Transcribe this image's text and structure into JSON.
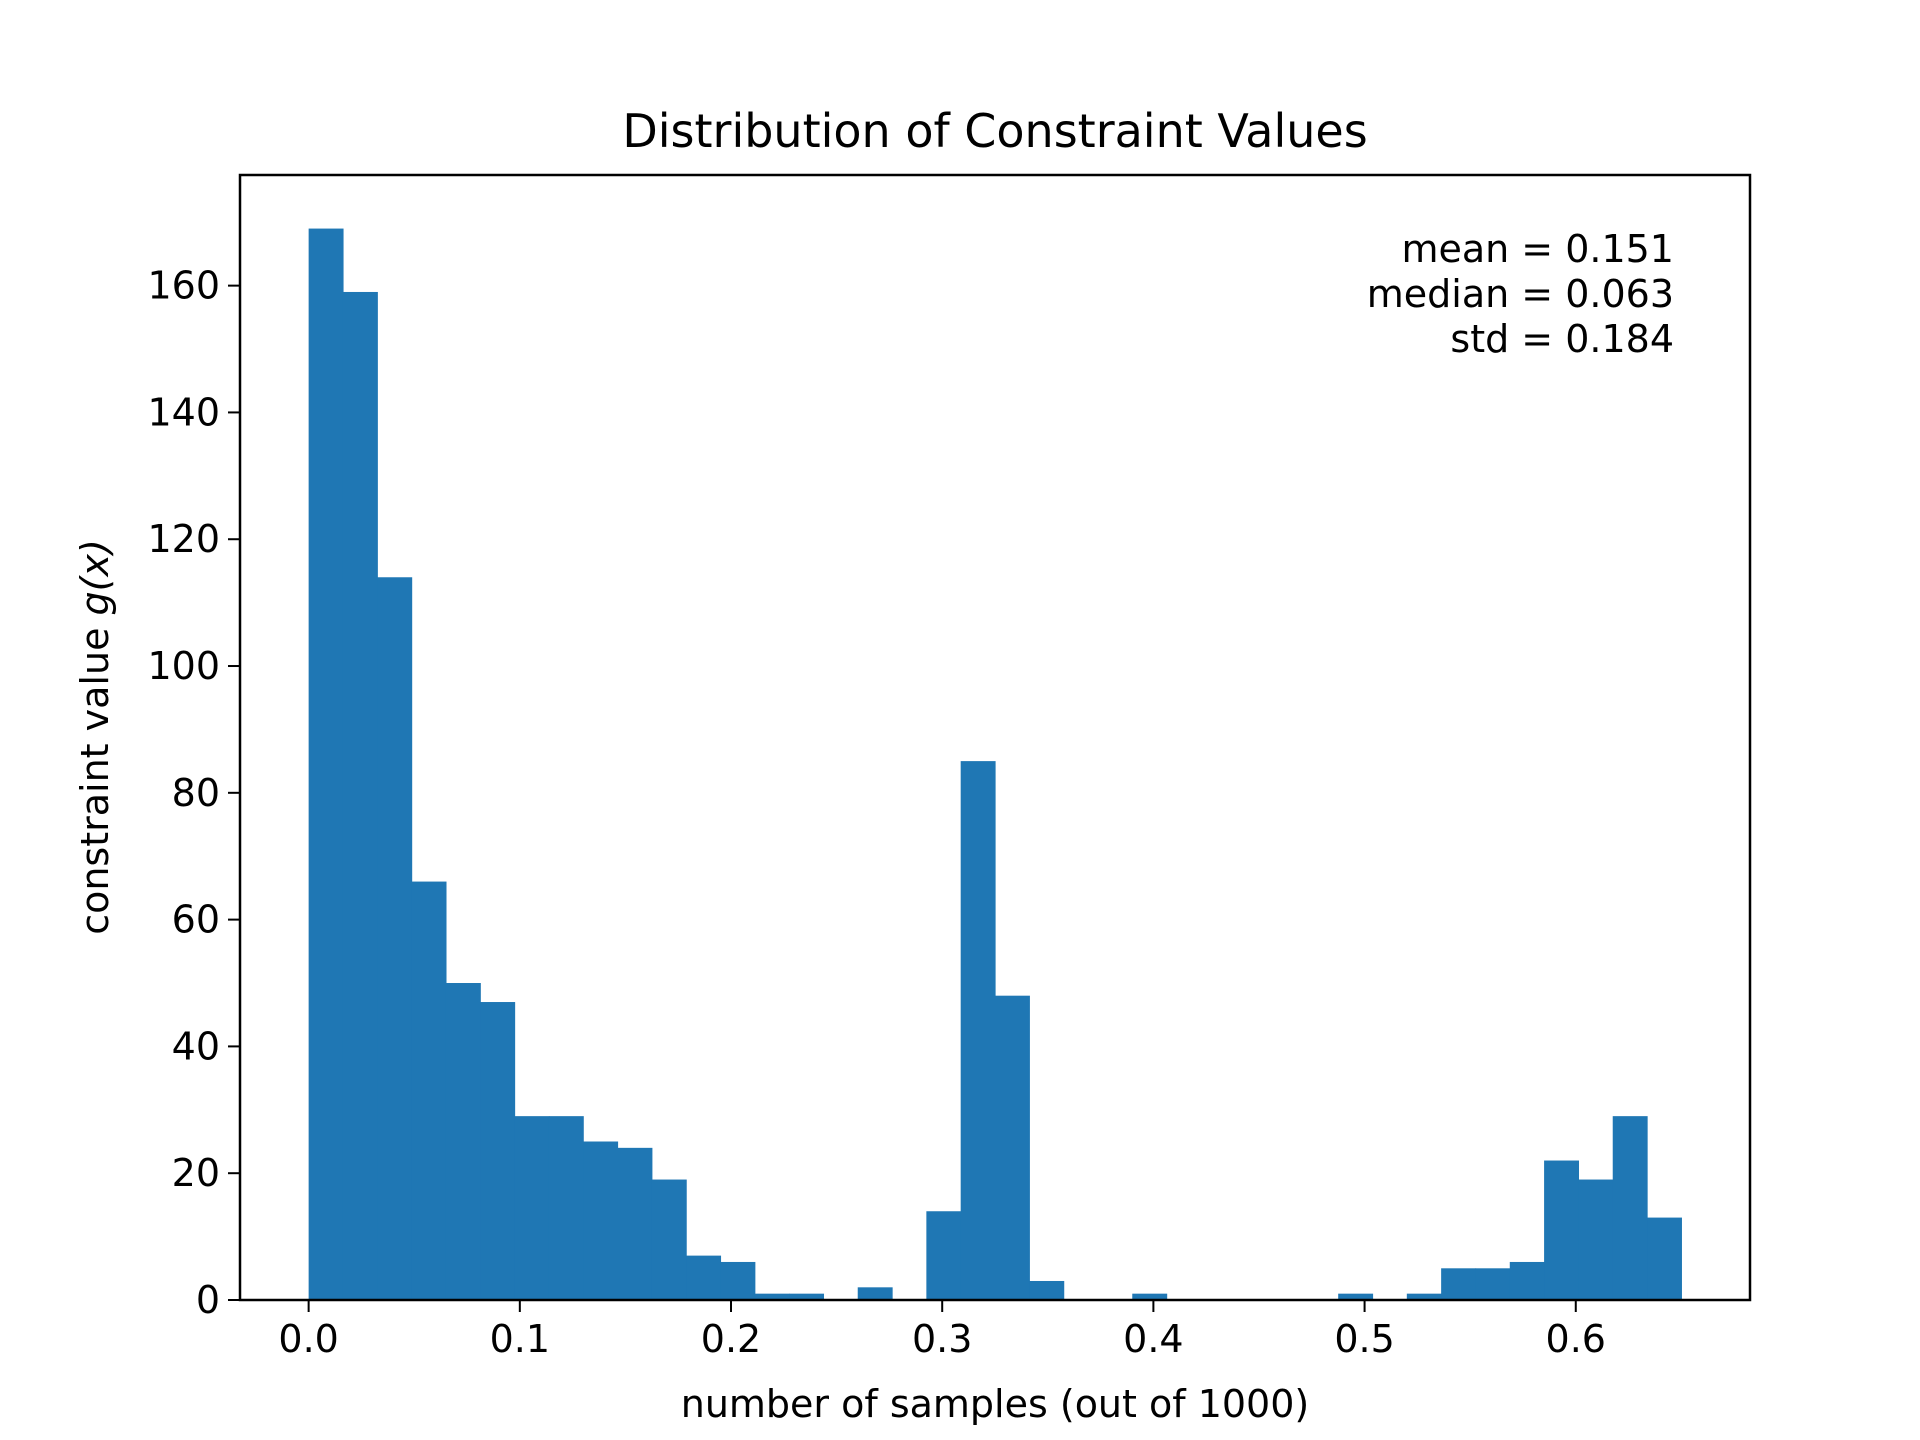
{
  "chart_data": {
    "type": "bar",
    "title": "Distribution of Constraint Values",
    "xlabel": "number of samples (out of 1000)",
    "ylabel_prefix": "constraint value ",
    "ylabel_math": "g(x)",
    "xlim": [
      -0.0325,
      0.6825
    ],
    "ylim": [
      0,
      177.45
    ],
    "xticks": [
      0.0,
      0.1,
      0.2,
      0.3,
      0.4,
      0.5,
      0.6
    ],
    "xtick_labels": [
      "0.0",
      "0.1",
      "0.2",
      "0.3",
      "0.4",
      "0.5",
      "0.6"
    ],
    "yticks": [
      0,
      20,
      40,
      60,
      80,
      100,
      120,
      140,
      160
    ],
    "ytick_labels": [
      "0",
      "20",
      "40",
      "60",
      "80",
      "100",
      "120",
      "140",
      "160"
    ],
    "bin_start": 0.0,
    "bin_width": 0.01625,
    "values": [
      169,
      159,
      114,
      66,
      50,
      47,
      29,
      29,
      25,
      24,
      19,
      7,
      6,
      1,
      1,
      0,
      2,
      0,
      14,
      85,
      48,
      3,
      0,
      0,
      1,
      0,
      0,
      0,
      0,
      0,
      1,
      0,
      1,
      5,
      5,
      6,
      22,
      19,
      29,
      13
    ],
    "bar_color": "#1f77b4",
    "grid": false,
    "annotation": {
      "placement": "top-right",
      "lines": [
        "mean = 0.151",
        "median = 0.063",
        "std = 0.184"
      ]
    }
  }
}
